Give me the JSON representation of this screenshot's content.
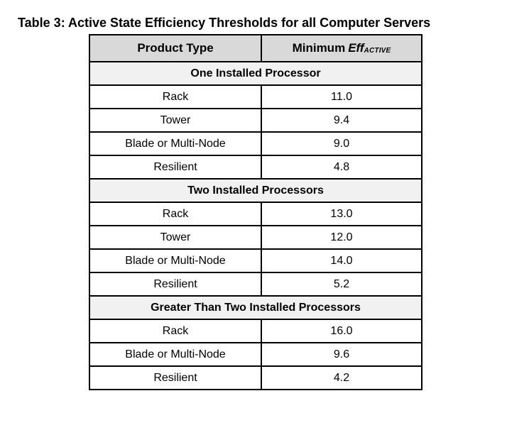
{
  "page": {
    "title": "Table 3: Active State Efficiency Thresholds for all Computer Servers"
  },
  "table": {
    "header": {
      "product_type_label": "Product Type",
      "min_eff_prefix": "Minimum",
      "min_eff_term": "Eff",
      "min_eff_subscript": "ACTIVE"
    },
    "sections": [
      {
        "label": "One Installed Processor",
        "rows": [
          {
            "product_type": "Rack",
            "min_eff": "11.0"
          },
          {
            "product_type": "Tower",
            "min_eff": "9.4"
          },
          {
            "product_type": "Blade or Multi-Node",
            "min_eff": "9.0"
          },
          {
            "product_type": "Resilient",
            "min_eff": "4.8"
          }
        ]
      },
      {
        "label": "Two Installed Processors",
        "rows": [
          {
            "product_type": "Rack",
            "min_eff": "13.0"
          },
          {
            "product_type": "Tower",
            "min_eff": "12.0"
          },
          {
            "product_type": "Blade or Multi-Node",
            "min_eff": "14.0"
          },
          {
            "product_type": "Resilient",
            "min_eff": "5.2"
          }
        ]
      },
      {
        "label": "Greater Than Two Installed Processors",
        "rows": [
          {
            "product_type": "Rack",
            "min_eff": "16.0"
          },
          {
            "product_type": "Blade or Multi-Node",
            "min_eff": "9.6"
          },
          {
            "product_type": "Resilient",
            "min_eff": "4.2"
          }
        ]
      }
    ],
    "colors": {
      "header_bg": "#d9d9d9",
      "section_bg": "#f1f1f1",
      "border": "#000000",
      "text": "#000000",
      "page_bg": "#ffffff"
    }
  }
}
